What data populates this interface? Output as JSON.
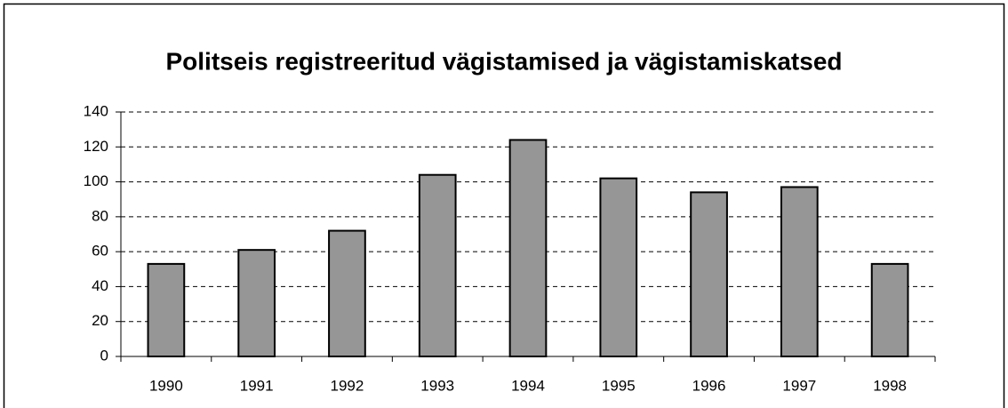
{
  "chart_data": {
    "type": "bar",
    "title": "Politseis registreeritud vägistamised ja vägistamiskatsed",
    "categories": [
      "1990",
      "1991",
      "1992",
      "1993",
      "1994",
      "1995",
      "1996",
      "1997",
      "1998"
    ],
    "values": [
      53,
      61,
      72,
      104,
      124,
      102,
      94,
      97,
      53
    ],
    "color": "#969696",
    "ylim": [
      0,
      140
    ],
    "yticks": [
      0,
      20,
      40,
      60,
      80,
      100,
      120,
      140
    ],
    "grid": true
  }
}
